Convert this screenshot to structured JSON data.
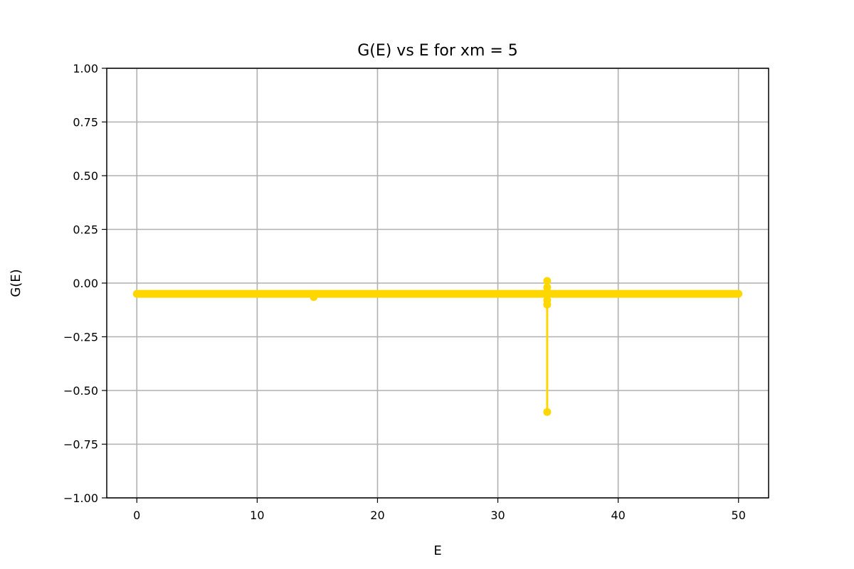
{
  "chart_data": {
    "type": "line",
    "title": "G(E) vs E for xm = 5",
    "xlabel": "E",
    "ylabel": "G(E)",
    "xlim": [
      -2.5,
      52.5
    ],
    "ylim": [
      -1.0,
      1.0
    ],
    "x_ticks": [
      0,
      10,
      20,
      30,
      40,
      50
    ],
    "x_tick_labels": [
      "0",
      "10",
      "20",
      "30",
      "40",
      "50"
    ],
    "y_ticks": [
      1.0,
      0.75,
      0.5,
      0.25,
      0.0,
      -0.25,
      -0.5,
      -0.75,
      -1.0
    ],
    "y_tick_labels": [
      "1.00",
      "0.75",
      "0.50",
      "0.25",
      "0.00",
      "−0.25",
      "−0.50",
      "−0.75",
      "−1.00"
    ],
    "grid": true,
    "series": [
      {
        "color": "#ffd700",
        "marker": "circle",
        "baseline": {
          "x_start": 0,
          "x_end": 50,
          "y": -0.05
        },
        "x": [
          14.7,
          14.7,
          34.1,
          34.1,
          34.1,
          34.1,
          34.1,
          34.1,
          34.1
        ],
        "y": [
          -0.05,
          -0.065,
          0.01,
          -0.02,
          -0.04,
          -0.05,
          -0.08,
          -0.1,
          -0.6
        ]
      }
    ]
  }
}
